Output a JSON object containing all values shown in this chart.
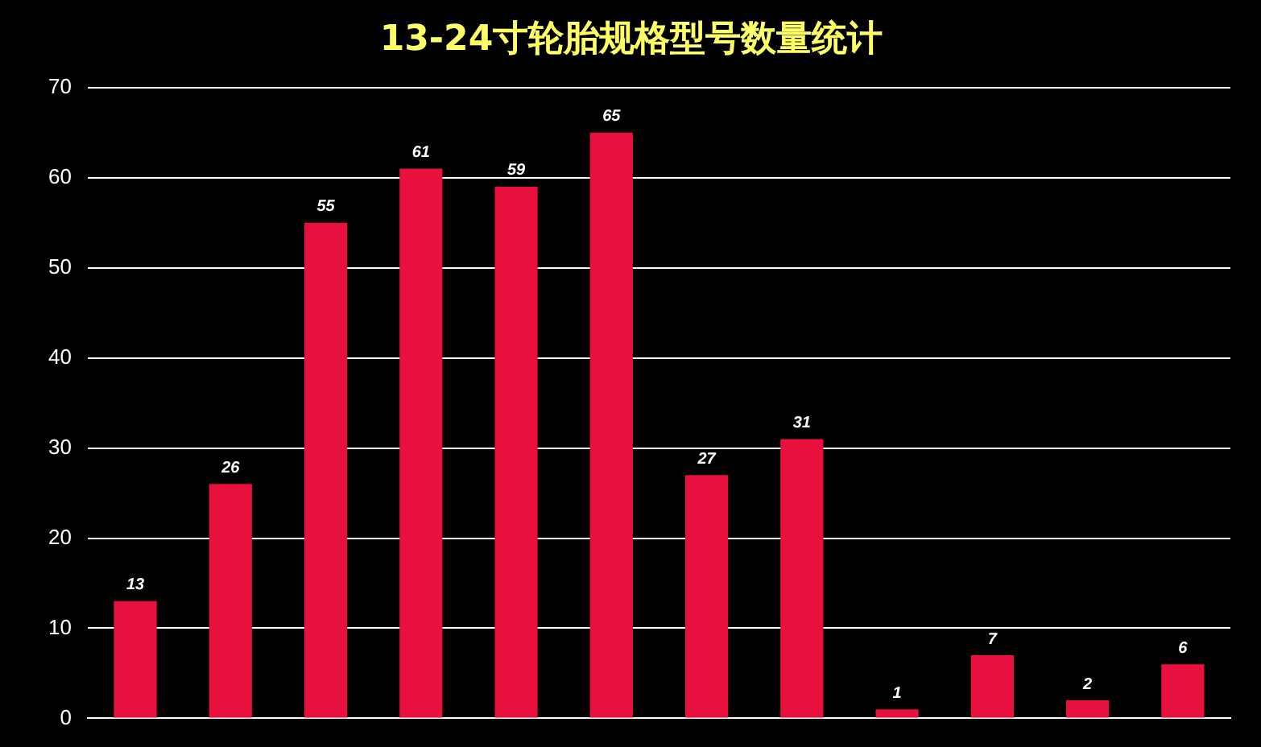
{
  "chart_data": {
    "type": "bar",
    "title": "13-24寸轮胎规格型号数量统计",
    "categories": [
      null,
      null,
      null,
      null,
      null,
      null,
      null,
      null,
      null,
      null,
      null,
      null
    ],
    "values": [
      13,
      26,
      55,
      61,
      59,
      65,
      27,
      31,
      1,
      7,
      2,
      6
    ],
    "color": "#e8103c",
    "ylim": [
      0,
      70
    ],
    "yticks": [
      0,
      10,
      20,
      30,
      40,
      50,
      60,
      70
    ],
    "grid": "y",
    "data_labels": true,
    "legend": false,
    "tick_labels": "y"
  }
}
